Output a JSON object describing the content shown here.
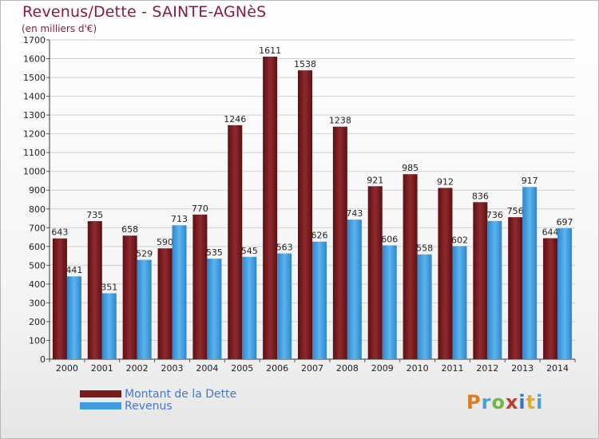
{
  "header": {
    "title": "Revenus/Dette - SAINTE-AGNèS",
    "subtitle": "(en milliers d'€)"
  },
  "legend": {
    "items": [
      {
        "label": "Montant de la Dette",
        "color": "#7a1a1a"
      },
      {
        "label": "Revenus",
        "color": "#3d9be0"
      }
    ]
  },
  "logo": {
    "text": "Proxiti",
    "colors": [
      "#e07b20",
      "#4aa0d8",
      "#6bb83a",
      "#c0392b",
      "#3a73c4",
      "#e0b020",
      "#4aa0d8"
    ]
  },
  "chart_data": {
    "type": "bar",
    "title": "Revenus/Dette - SAINTE-AGNèS",
    "subtitle": "(en milliers d'€)",
    "categories": [
      "2000",
      "2001",
      "2002",
      "2003",
      "2004",
      "2005",
      "2006",
      "2007",
      "2008",
      "2009",
      "2010",
      "2011",
      "2012",
      "2013",
      "2014"
    ],
    "series": [
      {
        "name": "Montant de la Dette",
        "color": "#7a1a1a",
        "values": [
          643,
          735,
          658,
          590,
          770,
          1246,
          1611,
          1538,
          1238,
          921,
          985,
          912,
          836,
          756,
          644
        ]
      },
      {
        "name": "Revenus",
        "color": "#3d9be0",
        "values": [
          441,
          351,
          529,
          713,
          535,
          545,
          563,
          626,
          743,
          606,
          558,
          602,
          736,
          917,
          697
        ]
      }
    ],
    "ylim": [
      0,
      1700
    ],
    "yticks": [
      0,
      100,
      200,
      300,
      400,
      500,
      600,
      700,
      800,
      900,
      1000,
      1100,
      1200,
      1300,
      1400,
      1500,
      1600,
      1700
    ],
    "grid": true,
    "legend_position": "bottom-left"
  }
}
